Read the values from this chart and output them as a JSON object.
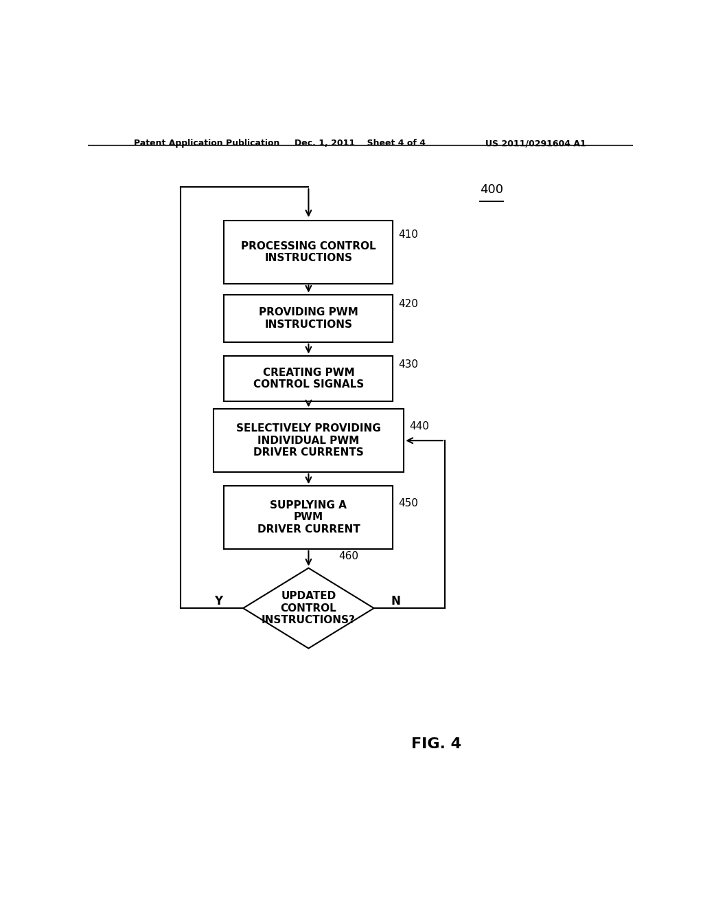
{
  "background_color": "#ffffff",
  "header_left": "Patent Application Publication",
  "header_center": "Dec. 1, 2011    Sheet 4 of 4",
  "header_right": "US 2011/0291604 A1",
  "figure_label": "FIG. 4",
  "ref_number": "400",
  "box_410_label": "PROCESSING CONTROL\nINSTRUCTIONS",
  "box_420_label": "PROVIDING PWM\nINSTRUCTIONS",
  "box_430_label": "CREATING PWM\nCONTROL SIGNALS",
  "box_440_label": "SELECTIVELY PROVIDING\nINDIVIDUAL PWM\nDRIVER CURRENTS",
  "box_450_label": "SUPPLYING A\nPWM\nDRIVER CURRENT",
  "box_460_label": "UPDATED\nCONTROL\nINSTRUCTIONS?",
  "label_Y": "Y",
  "label_N": "N",
  "font_size_box": 11,
  "font_size_ref": 11,
  "font_size_fig": 16,
  "font_size_header": 9,
  "line_color": "#000000"
}
